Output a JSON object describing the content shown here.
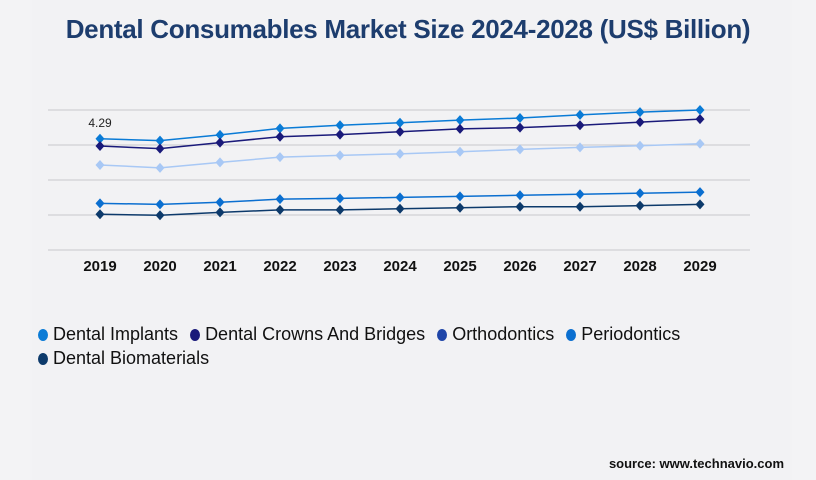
{
  "chart_data": {
    "type": "line",
    "title": "Dental Consumables Market Size 2024-2028 (US$ Billion)",
    "x": [
      "2019",
      "2020",
      "2021",
      "2022",
      "2023",
      "2024",
      "2025",
      "2026",
      "2027",
      "2028",
      "2029"
    ],
    "ylim": [
      0,
      5.4
    ],
    "grid": true,
    "legend_position": "bottom",
    "annotations": [
      {
        "series": "Dental Implants",
        "x": "2019",
        "label": "4.29"
      }
    ],
    "series": [
      {
        "name": "Dental Implants",
        "color": "#0a7bd6",
        "legend_color": "#0a7bd6",
        "values": [
          4.29,
          4.22,
          4.44,
          4.69,
          4.81,
          4.91,
          5.01,
          5.09,
          5.21,
          5.32,
          5.4
        ]
      },
      {
        "name": "Dental Crowns And Bridges",
        "color": "#1a1a7a",
        "legend_color": "#1a1a7a",
        "values": [
          4.01,
          3.91,
          4.14,
          4.37,
          4.45,
          4.56,
          4.67,
          4.72,
          4.81,
          4.93,
          5.05
        ]
      },
      {
        "name": "Orthodontics",
        "color": "#a8c8f5",
        "legend_color": "#1f45a8",
        "values": [
          3.28,
          3.17,
          3.38,
          3.58,
          3.65,
          3.71,
          3.79,
          3.88,
          3.96,
          4.02,
          4.1
        ]
      },
      {
        "name": "Periodontics",
        "color": "#0b6fd0",
        "legend_color": "#0b6fd0",
        "values": [
          1.8,
          1.76,
          1.84,
          1.96,
          1.99,
          2.03,
          2.07,
          2.11,
          2.15,
          2.19,
          2.23
        ]
      },
      {
        "name": "Dental Biomaterials",
        "color": "#0d3a6b",
        "legend_color": "#0d3a6b",
        "values": [
          1.38,
          1.34,
          1.45,
          1.55,
          1.55,
          1.59,
          1.63,
          1.67,
          1.67,
          1.71,
          1.76
        ]
      }
    ]
  },
  "source": "source: www.technavio.com"
}
